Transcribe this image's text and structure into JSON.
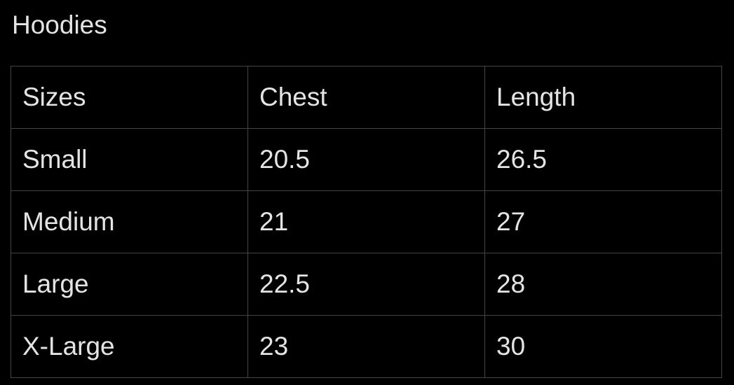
{
  "title": "Hoodies",
  "table": {
    "headers": [
      "Sizes",
      "Chest",
      "Length"
    ],
    "rows": [
      [
        "Small",
        "20.5",
        "26.5"
      ],
      [
        "Medium",
        "21",
        "27"
      ],
      [
        "Large",
        "22.5",
        "28"
      ],
      [
        "X-Large",
        "23",
        "30"
      ]
    ]
  }
}
